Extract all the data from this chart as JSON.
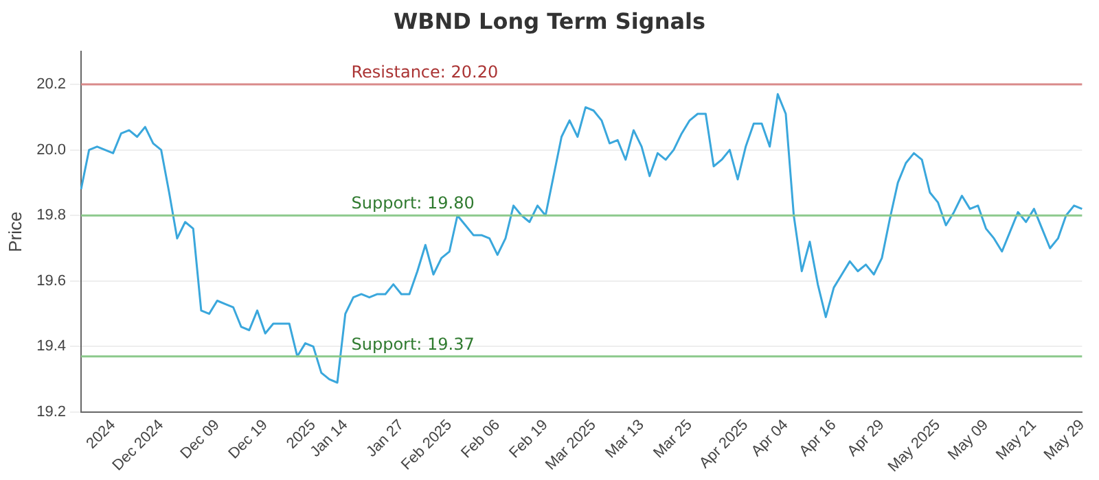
{
  "chart_data": {
    "type": "line",
    "title": "WBND Long Term Signals",
    "ylabel": "Price",
    "categories": [
      null,
      null,
      null,
      null,
      "2024",
      null,
      null,
      null,
      null,
      null,
      "Dec 2024",
      null,
      null,
      null,
      null,
      null,
      null,
      "Dec 09",
      null,
      null,
      null,
      null,
      null,
      "Dec 19",
      null,
      null,
      null,
      null,
      null,
      "2025",
      null,
      null,
      null,
      "Jan 14",
      null,
      null,
      null,
      null,
      null,
      null,
      "Jan 27",
      null,
      null,
      null,
      null,
      null,
      "Feb 2025",
      null,
      null,
      null,
      null,
      null,
      "Feb 06",
      null,
      null,
      null,
      null,
      null,
      "Feb 19",
      null,
      null,
      null,
      null,
      null,
      "Mar 2025",
      null,
      null,
      null,
      null,
      null,
      "Mar 13",
      null,
      null,
      null,
      null,
      null,
      "Mar 25",
      null,
      null,
      null,
      null,
      null,
      null,
      "Apr 2025",
      null,
      null,
      null,
      null,
      "Apr 04",
      null,
      null,
      null,
      null,
      null,
      "Apr 16",
      null,
      null,
      null,
      null,
      null,
      "Apr 29",
      null,
      null,
      null,
      null,
      null,
      null,
      "May 2025",
      null,
      null,
      null,
      null,
      null,
      "May 09",
      null,
      null,
      null,
      null,
      null,
      "May 21",
      null,
      null,
      null,
      null,
      null,
      "May 29"
    ],
    "series": [
      {
        "color": "#3aa7dc",
        "values": [
          19.88,
          20.0,
          20.01,
          20.0,
          19.99,
          20.05,
          20.06,
          20.04,
          20.07,
          20.02,
          20.0,
          19.87,
          19.73,
          19.78,
          19.76,
          19.51,
          19.5,
          19.54,
          19.53,
          19.52,
          19.46,
          19.45,
          19.51,
          19.44,
          19.47,
          19.47,
          19.47,
          19.37,
          19.41,
          19.4,
          19.32,
          19.3,
          19.29,
          19.5,
          19.55,
          19.56,
          19.55,
          19.56,
          19.56,
          19.59,
          19.56,
          19.56,
          19.63,
          19.71,
          19.62,
          19.67,
          19.69,
          19.8,
          19.77,
          19.74,
          19.74,
          19.73,
          19.68,
          19.73,
          19.83,
          19.8,
          19.78,
          19.83,
          19.8,
          19.92,
          20.04,
          20.09,
          20.04,
          20.13,
          20.12,
          20.09,
          20.02,
          20.03,
          19.97,
          20.06,
          20.01,
          19.92,
          19.99,
          19.97,
          20.0,
          20.05,
          20.09,
          20.11,
          20.11,
          19.95,
          19.97,
          20.0,
          19.91,
          20.01,
          20.08,
          20.08,
          20.01,
          20.17,
          20.11,
          19.8,
          19.63,
          19.72,
          19.59,
          19.49,
          19.58,
          19.62,
          19.66,
          19.63,
          19.65,
          19.62,
          19.67,
          19.79,
          19.9,
          19.96,
          19.99,
          19.97,
          19.87,
          19.84,
          19.77,
          19.81,
          19.86,
          19.82,
          19.83,
          19.76,
          19.73,
          19.69,
          19.75,
          19.81,
          19.78,
          19.82,
          19.76,
          19.7,
          19.73,
          19.8,
          19.83,
          19.82
        ]
      }
    ],
    "ylim": [
      19.2,
      20.3
    ],
    "yticks": [
      19.2,
      19.4,
      19.6,
      19.8,
      {
        "value": 20,
        "label": "20.0"
      },
      20.2
    ],
    "grid": "y",
    "legend": false,
    "marker": "none",
    "line_style": "solid",
    "ref_lines": [
      {
        "axis": "y",
        "value": 20.2,
        "label": "Resistance: 20.20",
        "color": "#d98a8a"
      },
      {
        "axis": "y",
        "value": 19.8,
        "label": "Support: 19.80",
        "color": "#8cc98c"
      },
      {
        "axis": "y",
        "value": 19.37,
        "label": "Support: 19.37",
        "color": "#8cc98c"
      }
    ]
  }
}
